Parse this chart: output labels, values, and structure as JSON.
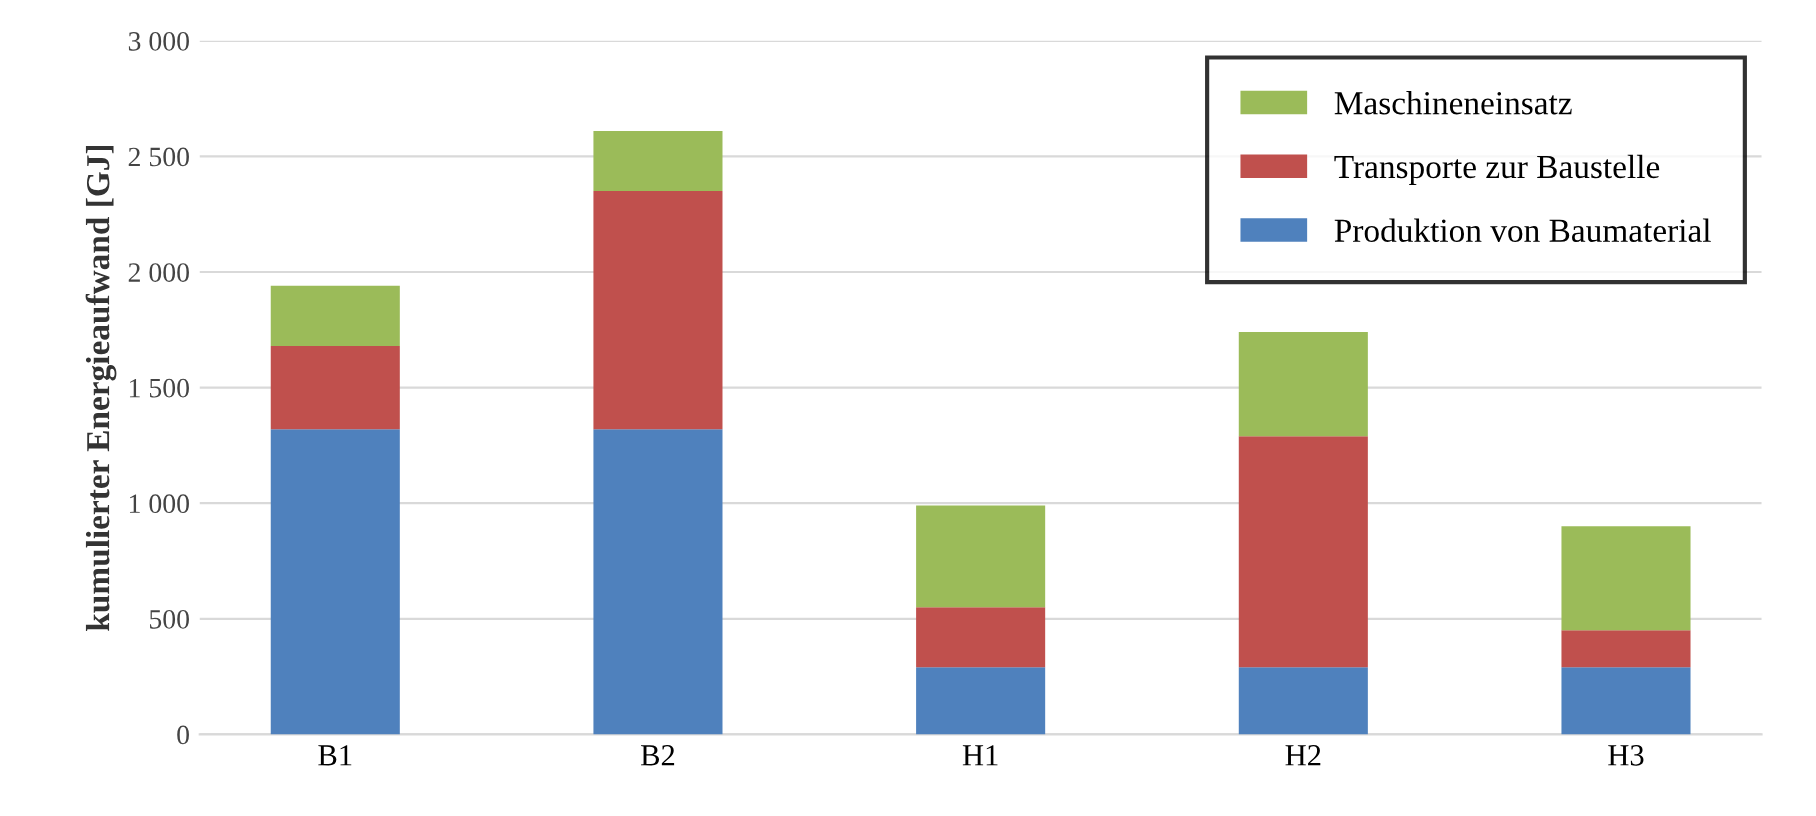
{
  "chart_data": {
    "type": "bar",
    "stacked": true,
    "ylabel": "kumulierter Energieaufwand [GJ]",
    "categories": [
      "B1",
      "B2",
      "H1",
      "H2",
      "H3"
    ],
    "series": [
      {
        "name": "Produktion von Baumaterial",
        "color": "#4f81bd",
        "values": [
          1320,
          1320,
          290,
          290,
          290
        ]
      },
      {
        "name": "Transporte zur Baustelle",
        "color": "#c0504d",
        "values": [
          360,
          1030,
          260,
          1000,
          160
        ]
      },
      {
        "name": "Maschineneinsatz",
        "color": "#9bbb59",
        "values": [
          260,
          260,
          440,
          450,
          450
        ]
      }
    ],
    "ylim": [
      0,
      3000
    ],
    "yticks": [
      0,
      500,
      {
        "value": 1000,
        "label": "1 000"
      },
      {
        "value": 1500,
        "label": "1 500"
      },
      {
        "value": 2000,
        "label": "2 000"
      },
      {
        "value": 2500,
        "label": "2 500"
      },
      {
        "value": 3000,
        "label": "3 000"
      }
    ],
    "grid": "y",
    "legend": "top right"
  }
}
